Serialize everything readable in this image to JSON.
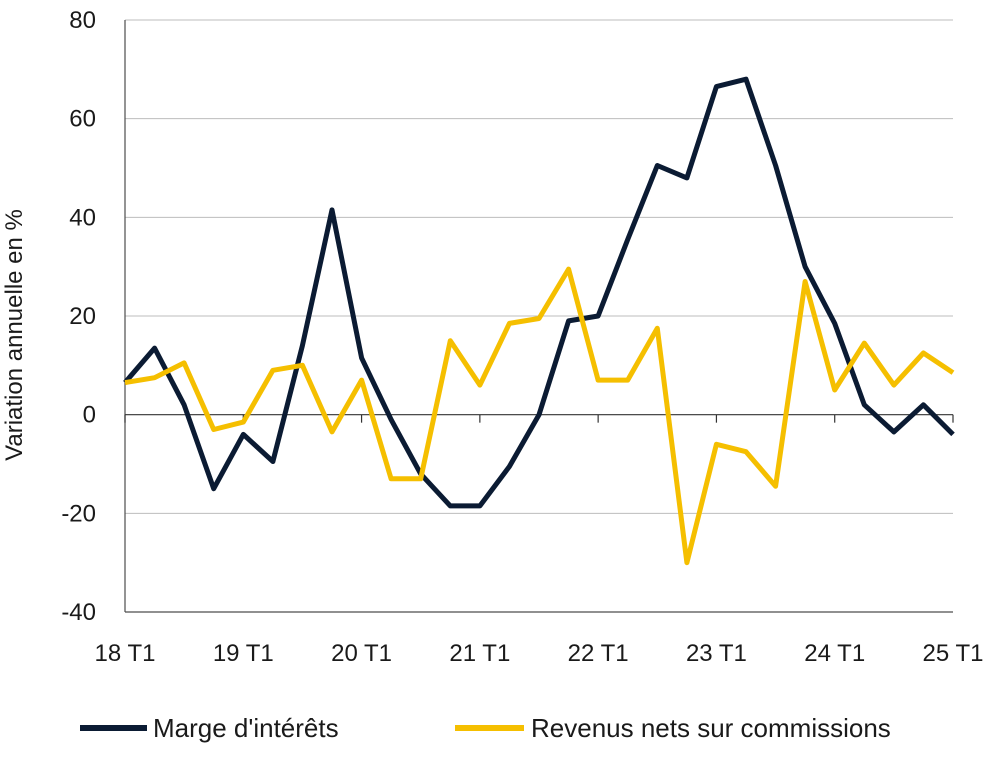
{
  "chart_data": {
    "type": "line",
    "ylabel": "Variation annuelle en %",
    "xlabel": "",
    "ylim": [
      -40,
      80
    ],
    "yticks": [
      -40,
      -20,
      0,
      20,
      40,
      60,
      80
    ],
    "ytick_labels": [
      "-40",
      "-20",
      "0",
      "20",
      "40",
      "60",
      "80"
    ],
    "xtick_labels": [
      "18 T1",
      "19 T1",
      "20 T1",
      "21 T1",
      "22 T1",
      "23 T1",
      "24 T1",
      "25 T1"
    ],
    "x": [
      "18 T1",
      "18 T2",
      "18 T3",
      "18 T4",
      "19 T1",
      "19 T2",
      "19 T3",
      "19 T4",
      "20 T1",
      "20 T2",
      "20 T3",
      "20 T4",
      "21 T1",
      "21 T2",
      "21 T3",
      "21 T4",
      "22 T1",
      "22 T2",
      "22 T3",
      "22 T4",
      "23 T1",
      "23 T2",
      "23 T3",
      "23 T4",
      "24 T1",
      "24 T2",
      "24 T3",
      "24 T4",
      "25 T1"
    ],
    "grid": "horizontal",
    "legend_position": "bottom",
    "series": [
      {
        "name": "Marge d'intérêts",
        "color": "#0b1b33",
        "values": [
          6.5,
          13.5,
          2,
          -15,
          -4,
          -9.5,
          14,
          41.5,
          11.5,
          -1,
          -12,
          -18.5,
          -18.5,
          -10.5,
          0,
          19,
          20,
          35.5,
          50.5,
          48,
          66.5,
          68,
          50.5,
          30,
          18.5,
          2,
          -3.5,
          2,
          -4
        ]
      },
      {
        "name": "Revenus nets sur commissions",
        "color": "#f5bf00",
        "values": [
          6.5,
          7.5,
          10.5,
          -3,
          -1.5,
          9,
          10,
          -3.5,
          7,
          -13,
          -13,
          15,
          6,
          18.5,
          19.5,
          29.5,
          7,
          7,
          17.5,
          -30,
          -6,
          -7.5,
          -14.5,
          27,
          5,
          14.5,
          6,
          12.5,
          8.5
        ]
      }
    ]
  }
}
